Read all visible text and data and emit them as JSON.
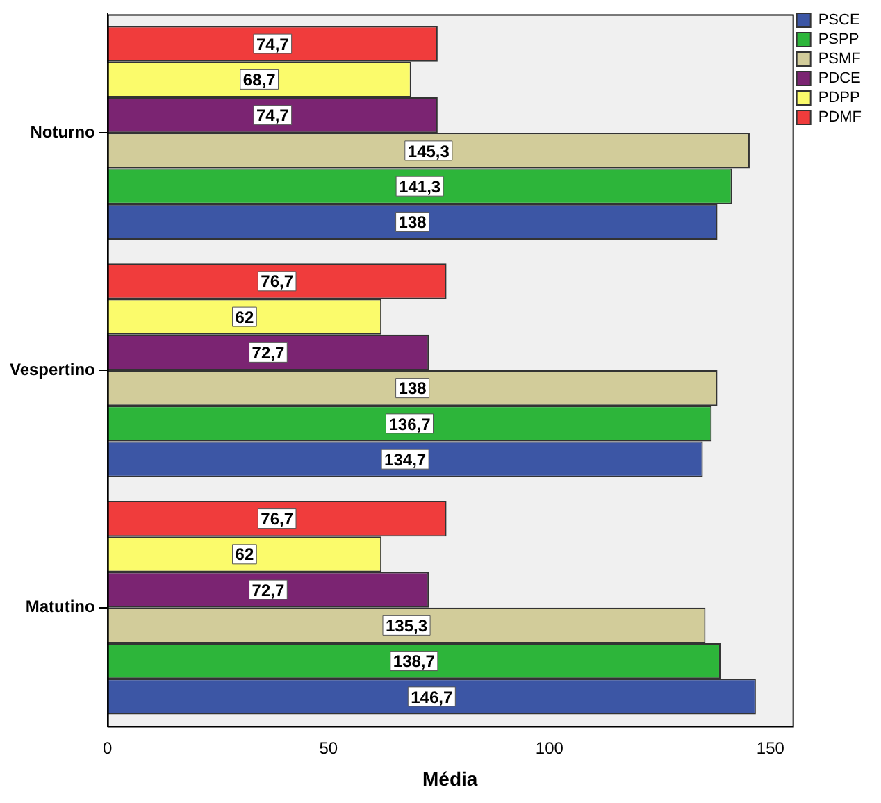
{
  "chart_data": {
    "type": "bar",
    "orientation": "horizontal",
    "xlabel": "Média",
    "categories": [
      "Noturno",
      "Vespertino",
      "Matutino"
    ],
    "series": [
      {
        "name": "PSCE",
        "color": "#3c56a5",
        "values": [
          138,
          134.7,
          146.7
        ],
        "value_labels": [
          "138",
          "134,7",
          "146,7"
        ]
      },
      {
        "name": "PSPP",
        "color": "#2db53a",
        "values": [
          141.3,
          136.7,
          138.7
        ],
        "value_labels": [
          "141,3",
          "136,7",
          "138,7"
        ]
      },
      {
        "name": "PSMF",
        "color": "#d2cc9a",
        "values": [
          145.3,
          138,
          135.3
        ],
        "value_labels": [
          "145,3",
          "138",
          "135,3"
        ]
      },
      {
        "name": "PDCE",
        "color": "#7b2472",
        "values": [
          74.7,
          72.7,
          72.7
        ],
        "value_labels": [
          "74,7",
          "72,7",
          "72,7"
        ]
      },
      {
        "name": "PDPP",
        "color": "#fbfb6b",
        "values": [
          68.7,
          62,
          62
        ],
        "value_labels": [
          "68,7",
          "62",
          "62"
        ]
      },
      {
        "name": "PDMF",
        "color": "#f03c3c",
        "values": [
          74.7,
          76.7,
          76.7
        ],
        "value_labels": [
          "74,7",
          "76,7",
          "76,7"
        ]
      }
    ],
    "xlim": [
      0,
      155
    ],
    "xticks": [
      0,
      50,
      100,
      150
    ],
    "grid": false,
    "legend": "top right"
  }
}
